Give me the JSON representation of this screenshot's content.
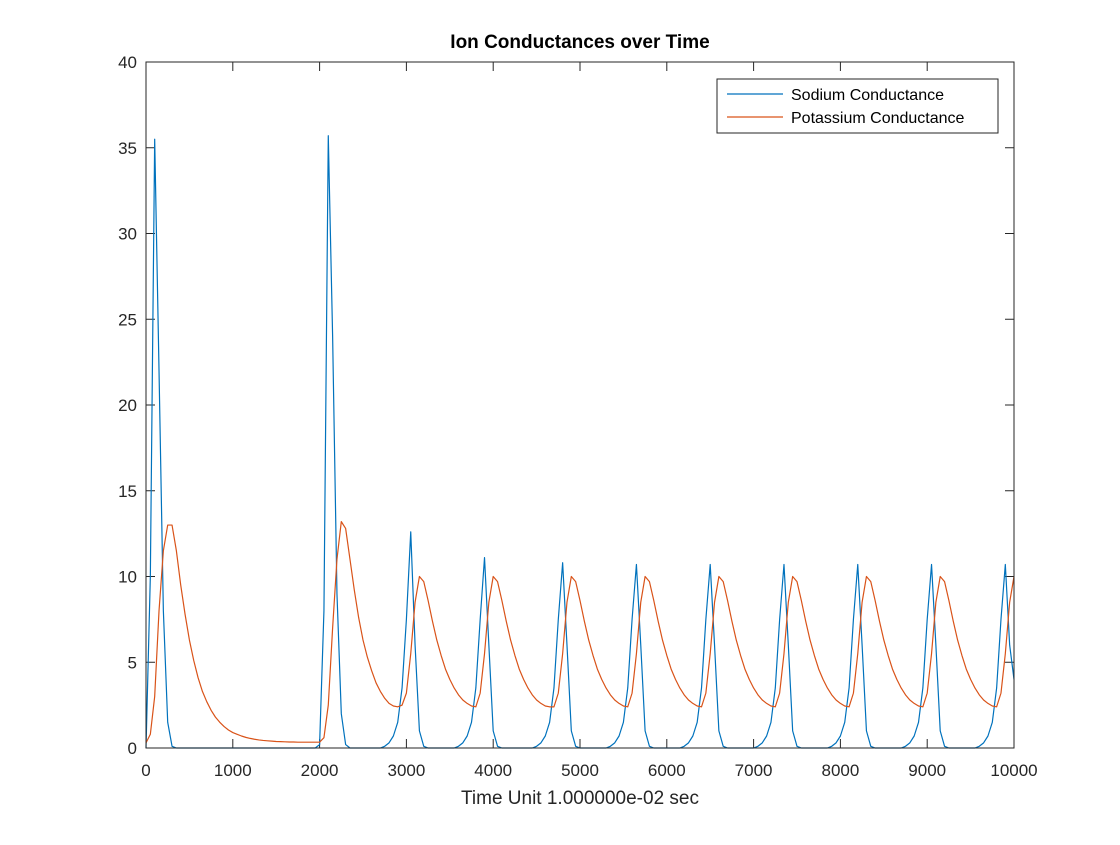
{
  "chart_data": {
    "type": "line",
    "title": "Ion Conductances over Time",
    "x_label": "Time Unit 1.000000e-02 sec",
    "xlim": [
      0,
      10000
    ],
    "ylim": [
      0,
      40
    ],
    "xticks": [
      0,
      1000,
      2000,
      3000,
      4000,
      5000,
      6000,
      7000,
      8000,
      9000,
      10000
    ],
    "yticks": [
      0,
      5,
      10,
      15,
      20,
      25,
      30,
      35,
      40
    ],
    "grid": false,
    "legend": "upper right",
    "x": [
      0,
      50,
      100,
      150,
      200,
      250,
      300,
      350,
      400,
      450,
      500,
      550,
      600,
      650,
      700,
      750,
      800,
      850,
      900,
      950,
      1000,
      1050,
      1100,
      1150,
      1200,
      1250,
      1300,
      1350,
      1400,
      1450,
      1500,
      1550,
      1600,
      1650,
      1700,
      1750,
      1800,
      1850,
      1900,
      1950,
      2000,
      2050,
      2100,
      2150,
      2200,
      2250,
      2300,
      2350,
      2400,
      2450,
      2500,
      2550,
      2600,
      2650,
      2700,
      2750,
      2800,
      2850,
      2900,
      2950,
      3000,
      3050,
      3100,
      3150,
      3200,
      3250,
      3300,
      3350,
      3400,
      3450,
      3500,
      3550,
      3600,
      3650,
      3700,
      3750,
      3800,
      3850,
      3900,
      3950,
      4000,
      4050,
      4100,
      4150,
      4200,
      4250,
      4300,
      4350,
      4400,
      4450,
      4500,
      4550,
      4600,
      4650,
      4700,
      4750,
      4800,
      4850,
      4900,
      4950,
      5000,
      5050,
      5100,
      5150,
      5200,
      5250,
      5300,
      5350,
      5400,
      5450,
      5500,
      5550,
      5600,
      5650,
      5700,
      5750,
      5800,
      5850,
      5900,
      5950,
      6000,
      6050,
      6100,
      6150,
      6200,
      6250,
      6300,
      6350,
      6400,
      6450,
      6500,
      6550,
      6600,
      6650,
      6700,
      6750,
      6800,
      6850,
      6900,
      6950,
      7000,
      7050,
      7100,
      7150,
      7200,
      7250,
      7300,
      7350,
      7400,
      7450,
      7500,
      7550,
      7600,
      7650,
      7700,
      7750,
      7800,
      7850,
      7900,
      7950,
      8000,
      8050,
      8100,
      8150,
      8200,
      8250,
      8300,
      8350,
      8400,
      8450,
      8500,
      8550,
      8600,
      8650,
      8700,
      8750,
      8800,
      8850,
      8900,
      8950,
      9000,
      9050,
      9100,
      9150,
      9200,
      9250,
      9300,
      9350,
      9400,
      9450,
      9500,
      9550,
      9600,
      9650,
      9700,
      9750,
      9800,
      9850,
      9900,
      9950,
      10000
    ],
    "series": [
      {
        "name": "Sodium Conductance",
        "color": "#0072bd",
        "values": [
          0,
          10,
          35.5,
          22,
          8,
          1.5,
          0.1,
          0,
          0,
          0,
          0,
          0,
          0,
          0,
          0,
          0,
          0,
          0,
          0,
          0,
          0,
          0,
          0,
          0,
          0,
          0,
          0,
          0,
          0,
          0,
          0,
          0,
          0,
          0,
          0,
          0,
          0,
          0,
          0,
          0,
          0.2,
          8,
          35.7,
          24,
          9,
          2,
          0.2,
          0,
          0,
          0,
          0,
          0,
          0,
          0,
          0,
          0.1,
          0.3,
          0.7,
          1.5,
          3.5,
          7.5,
          12.6,
          6,
          1,
          0.1,
          0,
          0,
          0,
          0,
          0,
          0,
          0,
          0.1,
          0.3,
          0.7,
          1.5,
          3.5,
          7.5,
          11.1,
          6,
          1,
          0.1,
          0,
          0,
          0,
          0,
          0,
          0,
          0,
          0,
          0.1,
          0.3,
          0.7,
          1.5,
          3.5,
          7.5,
          10.8,
          6,
          1,
          0.1,
          0,
          0,
          0,
          0,
          0,
          0,
          0,
          0.1,
          0.3,
          0.7,
          1.5,
          3.5,
          7.5,
          10.7,
          6,
          1,
          0.1,
          0,
          0,
          0,
          0,
          0,
          0,
          0,
          0.1,
          0.3,
          0.7,
          1.5,
          3.5,
          7.5,
          10.7,
          6,
          1,
          0.1,
          0,
          0,
          0,
          0,
          0,
          0,
          0,
          0.1,
          0.3,
          0.7,
          1.5,
          3.5,
          7.5,
          10.7,
          6,
          1,
          0.1,
          0,
          0,
          0,
          0,
          0,
          0,
          0,
          0.1,
          0.3,
          0.7,
          1.5,
          3.5,
          7.5,
          10.7,
          6,
          1,
          0.1,
          0,
          0,
          0,
          0,
          0,
          0,
          0,
          0.1,
          0.3,
          0.7,
          1.5,
          3.5,
          7.5,
          10.7,
          6,
          1,
          0.1,
          0,
          0,
          0,
          0,
          0,
          0,
          0,
          0.1,
          0.3,
          0.7,
          1.5,
          3.5,
          7.5,
          10.7,
          6,
          4
        ]
      },
      {
        "name": "Potassium Conductance",
        "color": "#d95319",
        "values": [
          0.3,
          0.8,
          3,
          8,
          11.5,
          13,
          13,
          11.5,
          9.5,
          7.8,
          6.3,
          5.1,
          4.1,
          3.3,
          2.7,
          2.2,
          1.8,
          1.5,
          1.25,
          1.05,
          0.9,
          0.8,
          0.7,
          0.62,
          0.56,
          0.51,
          0.47,
          0.44,
          0.42,
          0.4,
          0.38,
          0.37,
          0.36,
          0.35,
          0.35,
          0.34,
          0.34,
          0.34,
          0.34,
          0.34,
          0.34,
          0.6,
          2.5,
          7,
          11,
          13.2,
          12.8,
          11,
          9.2,
          7.6,
          6.3,
          5.3,
          4.5,
          3.8,
          3.3,
          2.9,
          2.6,
          2.45,
          2.4,
          2.5,
          3.2,
          5.5,
          8.5,
          10,
          9.7,
          8.6,
          7.4,
          6.3,
          5.4,
          4.6,
          4,
          3.5,
          3.1,
          2.8,
          2.6,
          2.45,
          2.4,
          3.2,
          5.5,
          8.5,
          10,
          9.7,
          8.6,
          7.4,
          6.3,
          5.4,
          4.6,
          4,
          3.5,
          3.1,
          2.8,
          2.6,
          2.45,
          2.4,
          2.4,
          3.2,
          5.5,
          8.5,
          10,
          9.7,
          8.6,
          7.4,
          6.3,
          5.4,
          4.6,
          4,
          3.5,
          3.1,
          2.8,
          2.6,
          2.45,
          2.4,
          3.2,
          5.5,
          8.5,
          10,
          9.7,
          8.6,
          7.4,
          6.3,
          5.4,
          4.6,
          4,
          3.5,
          3.1,
          2.8,
          2.6,
          2.45,
          2.4,
          3.2,
          5.5,
          8.5,
          10,
          9.7,
          8.6,
          7.4,
          6.3,
          5.4,
          4.6,
          4,
          3.5,
          3.1,
          2.8,
          2.6,
          2.45,
          2.4,
          3.2,
          5.5,
          8.5,
          10,
          9.7,
          8.6,
          7.4,
          6.3,
          5.4,
          4.6,
          4,
          3.5,
          3.1,
          2.8,
          2.6,
          2.45,
          2.4,
          3.2,
          5.5,
          8.5,
          10,
          9.7,
          8.6,
          7.4,
          6.3,
          5.4,
          4.6,
          4,
          3.5,
          3.1,
          2.8,
          2.6,
          2.45,
          2.4,
          3.2,
          5.5,
          8.5,
          10,
          9.7,
          8.6,
          7.4,
          6.3,
          5.4,
          4.6,
          4,
          3.5,
          3.1,
          2.8,
          2.6,
          2.45,
          2.4,
          3.2,
          5.5,
          8.5,
          10
        ]
      }
    ]
  }
}
